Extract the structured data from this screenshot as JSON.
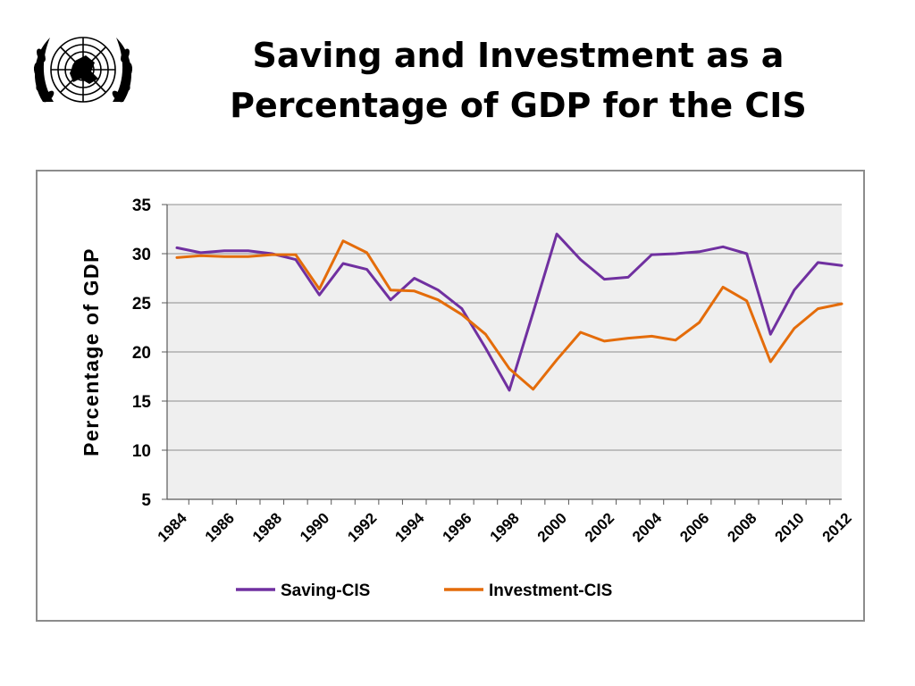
{
  "slide": {
    "title_line1": "Saving and Investment as a",
    "title_line2": "Percentage of GDP for the CIS",
    "logo": "un-emblem"
  },
  "chart_data": {
    "type": "line",
    "title": "",
    "xlabel": "",
    "ylabel": "Percentage of GDP",
    "ylim": [
      5,
      35
    ],
    "yticks": [
      5,
      10,
      15,
      20,
      25,
      30,
      35
    ],
    "xlim": [
      1984,
      2012
    ],
    "xticks": [
      1984,
      1986,
      1988,
      1990,
      1992,
      1994,
      1996,
      1998,
      2000,
      2002,
      2004,
      2006,
      2008,
      2010,
      2012
    ],
    "grid": true,
    "legend_position": "bottom",
    "plot_background": "#efefef",
    "x": [
      1984,
      1985,
      1986,
      1987,
      1988,
      1989,
      1990,
      1991,
      1992,
      1993,
      1994,
      1995,
      1996,
      1997,
      1998,
      1999,
      2000,
      2001,
      2002,
      2003,
      2004,
      2005,
      2006,
      2007,
      2008,
      2009,
      2010,
      2011,
      2012
    ],
    "series": [
      {
        "name": "Saving-CIS",
        "color": "#7030a0",
        "values": [
          30.6,
          30.1,
          30.3,
          30.3,
          30.0,
          29.4,
          25.8,
          29.0,
          28.4,
          25.3,
          27.5,
          26.3,
          24.4,
          20.4,
          16.1,
          24.0,
          32.0,
          29.4,
          27.4,
          27.6,
          29.9,
          30.0,
          30.2,
          30.7,
          30.0,
          21.8,
          26.3,
          29.1,
          28.8
        ]
      },
      {
        "name": "Investment-CIS",
        "color": "#e46c0a",
        "values": [
          29.6,
          29.8,
          29.7,
          29.7,
          29.9,
          29.9,
          26.4,
          31.3,
          30.1,
          26.3,
          26.2,
          25.3,
          23.8,
          21.8,
          18.3,
          16.2,
          19.2,
          22.0,
          21.1,
          21.4,
          21.6,
          21.2,
          23.0,
          26.6,
          25.2,
          19.0,
          22.4,
          24.4,
          24.9
        ]
      }
    ]
  }
}
